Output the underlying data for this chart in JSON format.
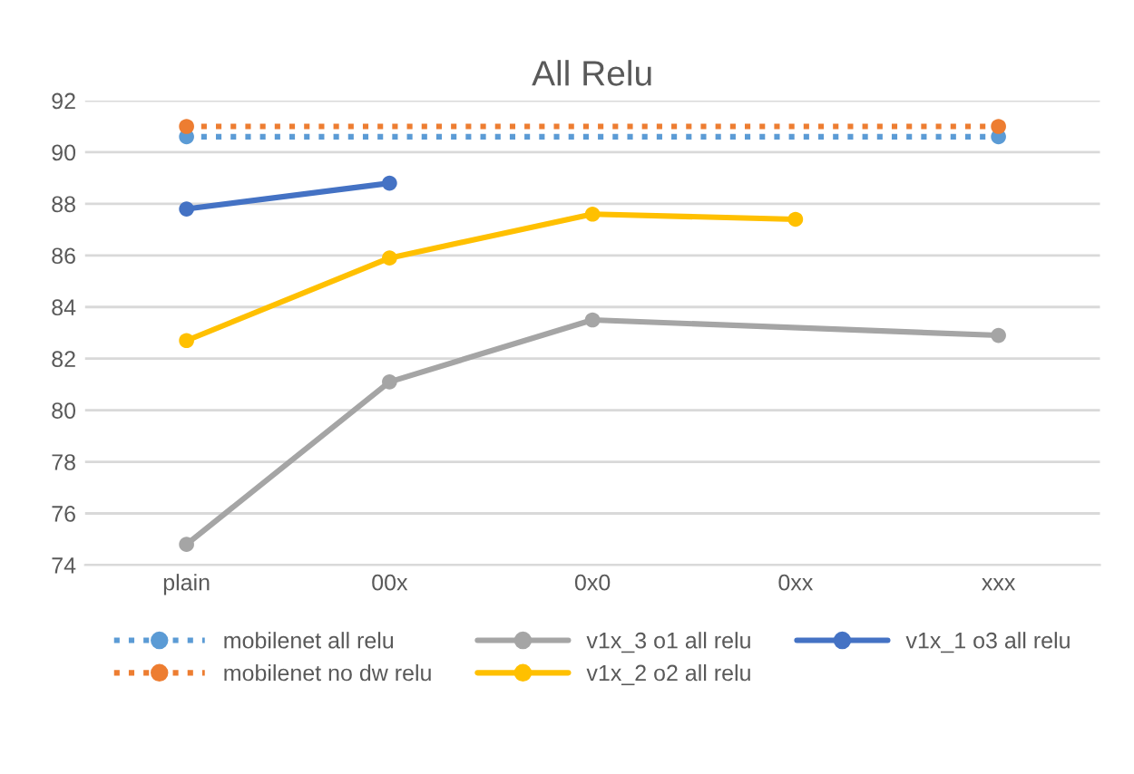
{
  "chart_data": {
    "type": "line",
    "title": "All Relu",
    "categories": [
      "plain",
      "00x",
      "0x0",
      "0xx",
      "xxx"
    ],
    "series": [
      {
        "name": "mobilenet all relu",
        "color": "#5b9bd5",
        "line_style": "dotted",
        "values": [
          90.6,
          null,
          null,
          null,
          90.6
        ]
      },
      {
        "name": "mobilenet no dw relu",
        "color": "#ed7d31",
        "line_style": "dotted",
        "values": [
          91.0,
          null,
          null,
          null,
          91.0
        ]
      },
      {
        "name": "v1x_3 o1 all relu",
        "color": "#a5a5a5",
        "line_style": "solid",
        "values": [
          74.8,
          81.1,
          83.5,
          null,
          82.9
        ]
      },
      {
        "name": "v1x_2 o2 all relu",
        "color": "#ffc000",
        "line_style": "solid",
        "values": [
          82.7,
          85.9,
          87.6,
          87.4,
          null
        ]
      },
      {
        "name": "v1x_1 o3 all relu",
        "color": "#4472c4",
        "line_style": "solid",
        "values": [
          87.8,
          88.8,
          null,
          null,
          null
        ]
      }
    ],
    "ylim": [
      74,
      92
    ],
    "yticks": [
      74,
      76,
      78,
      80,
      82,
      84,
      86,
      88,
      90,
      92
    ],
    "grid": "y",
    "legend": "bottom",
    "marker": "circle"
  }
}
